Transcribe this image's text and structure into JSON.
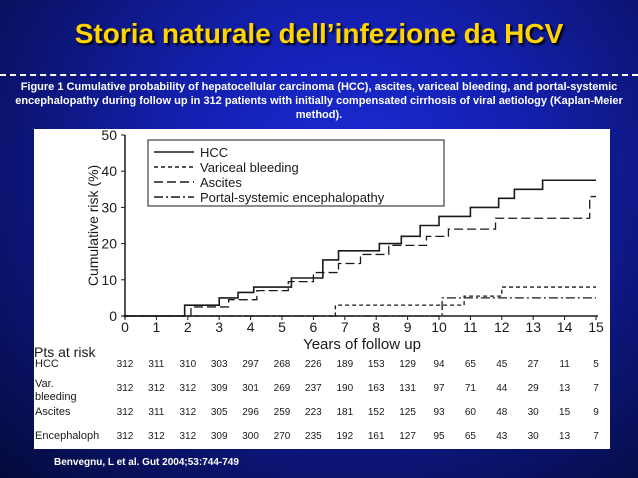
{
  "slide": {
    "title": "Storia naturale dell’infezione da HCV",
    "caption": "Figure 1 Cumulative probability of hepatocellular carcinoma (HCC), ascites, variceal bleeding, and portal-systemic encephalopathy during follow up in 312 patients with initially compensated cirrhosis of viral aetiology (Kaplan-Meier method).",
    "citation": "Benvegnu, L et al. Gut 2004;53:744-749"
  },
  "chart_data": {
    "type": "line",
    "subtype": "kaplan-meier step",
    "xlabel": "Years of follow up",
    "ylabel": "Cumulative risk (%)",
    "xlim": [
      0,
      15
    ],
    "ylim": [
      0,
      50
    ],
    "xticks": [
      0,
      1,
      2,
      3,
      4,
      5,
      6,
      7,
      8,
      9,
      10,
      11,
      12,
      13,
      14,
      15
    ],
    "yticks": [
      0,
      10,
      20,
      30,
      40,
      50
    ],
    "legend_position": "top-right",
    "series": [
      {
        "name": "HCC",
        "style": "solid",
        "x": [
          0,
          1.9,
          3,
          3.6,
          4.1,
          5.3,
          6.3,
          6.8,
          8.1,
          8.8,
          9.4,
          10,
          11,
          11.9,
          12.4,
          12.7,
          13.3,
          15
        ],
        "y": [
          0,
          3,
          5,
          6.5,
          8,
          10.5,
          15.5,
          18,
          20,
          22,
          25,
          27.5,
          30,
          32.5,
          35,
          35,
          37.5,
          37.5
        ]
      },
      {
        "name": "Variceal bleeding",
        "style": "dashed",
        "x": [
          0,
          6.7,
          10.8,
          12,
          15
        ],
        "y": [
          0,
          3,
          5.5,
          8,
          8
        ]
      },
      {
        "name": "Ascites",
        "style": "longdash",
        "x": [
          0,
          2.1,
          3.3,
          4.2,
          5.2,
          6,
          6.8,
          7.5,
          8.4,
          9.6,
          10.3,
          11.8,
          12.4,
          14.8,
          15
        ],
        "y": [
          0,
          2.5,
          4.5,
          7,
          9.5,
          12,
          14.5,
          17,
          19.5,
          22,
          24,
          27,
          27,
          33,
          33
        ]
      },
      {
        "name": "Portal-systemic encephalopathy",
        "style": "dashdot",
        "x": [
          0,
          10.1,
          15
        ],
        "y": [
          0,
          5,
          5
        ]
      }
    ],
    "risk_table": {
      "title": "Pts at risk",
      "times": [
        0,
        1,
        2,
        3,
        4,
        5,
        6,
        7,
        8,
        9,
        10,
        11,
        12,
        13,
        14,
        15
      ],
      "rows": [
        {
          "label": "HCC",
          "values": [
            "312",
            "311",
            "310",
            "303",
            "297",
            "268",
            "226",
            "189",
            "153",
            "129",
            "94",
            "65",
            "45",
            "27",
            "11",
            "5"
          ]
        },
        {
          "label": "Var. bleeding",
          "label_lines": [
            "Var.",
            "bleeding"
          ],
          "values": [
            "312",
            "312",
            "312",
            "309",
            "301",
            "269",
            "237",
            "190",
            "163",
            "131",
            "97",
            "71",
            "44",
            "29",
            "13",
            "7"
          ]
        },
        {
          "label": "Ascites",
          "values": [
            "312",
            "311",
            "312",
            "305",
            "296",
            "259",
            "223",
            "181",
            "152",
            "125",
            "93",
            "60",
            "48",
            "30",
            "15",
            "9"
          ]
        },
        {
          "label": "Encephaloph",
          "values": [
            "312",
            "312",
            "312",
            "309",
            "300",
            "270",
            "235",
            "192",
            "161",
            "127",
            "95",
            "65",
            "43",
            "30",
            "13",
            "7"
          ]
        }
      ]
    },
    "colors": {
      "line": "#1a1a1a",
      "panel": "#ffffff"
    }
  }
}
